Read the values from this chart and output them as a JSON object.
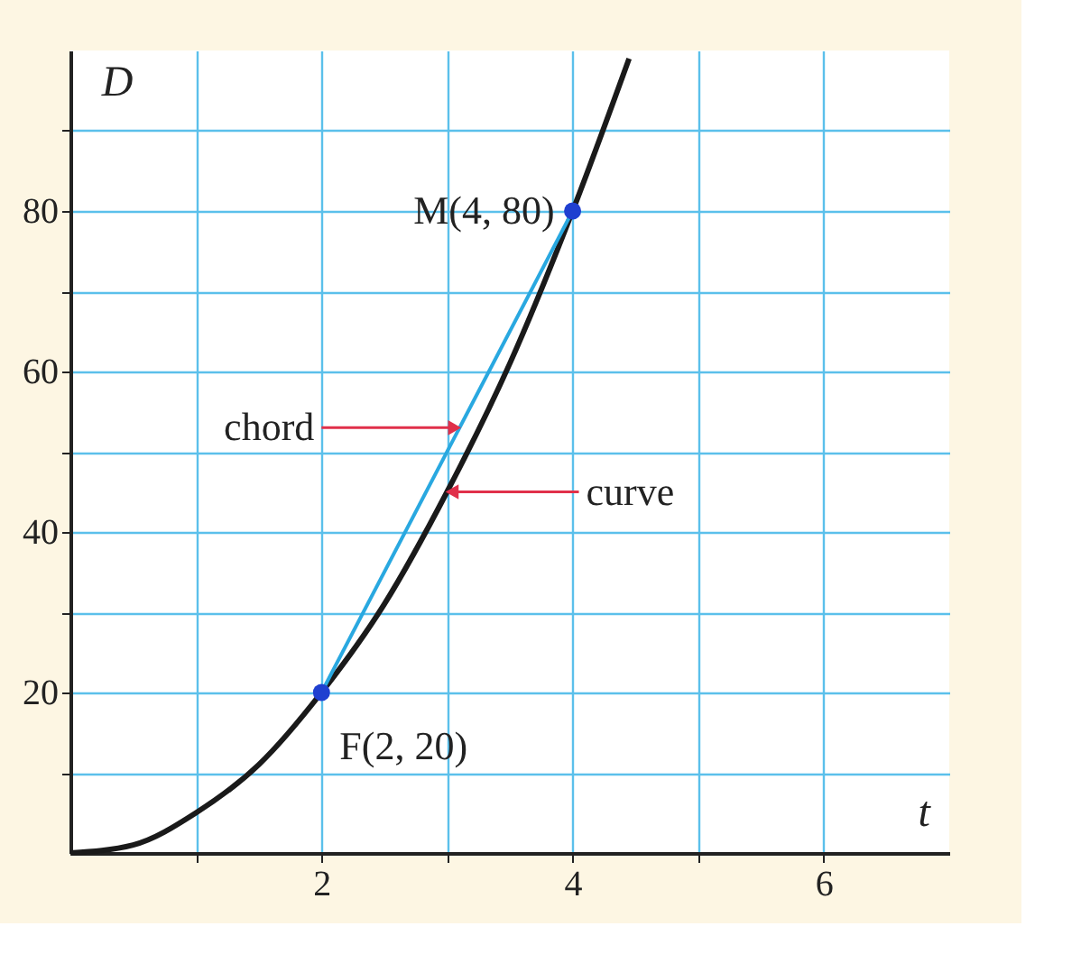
{
  "chart_data": {
    "type": "line",
    "xlabel": "t",
    "ylabel": "D",
    "xlim": [
      0,
      7
    ],
    "ylim": [
      0,
      100
    ],
    "xticks": [
      {
        "value": 1,
        "label": null
      },
      2,
      {
        "value": 3,
        "label": null
      },
      4,
      {
        "value": 5,
        "label": null
      },
      6
    ],
    "yticks": [
      {
        "value": 10,
        "label": null
      },
      20,
      {
        "value": 30,
        "label": null
      },
      40,
      {
        "value": 50,
        "label": null
      },
      60,
      {
        "value": 70,
        "label": null
      },
      80,
      {
        "value": 90,
        "label": null
      }
    ],
    "grid": true,
    "series": [
      {
        "color": "#1a1a1a",
        "x": [
          0,
          0.5,
          1,
          1.5,
          2,
          2.5,
          3,
          3.5,
          4,
          4.45
        ],
        "values": [
          0,
          1,
          5,
          11,
          20,
          31,
          45,
          61,
          80,
          99
        ]
      },
      {
        "color": "#29a8e0",
        "x": [
          2,
          4
        ],
        "values": [
          20,
          80
        ]
      },
      {
        "type": "scatter",
        "marker": "circle",
        "color": "#1f3fd0",
        "x": [
          2,
          4
        ],
        "values": [
          20,
          80
        ]
      }
    ],
    "annotations": [
      {
        "text": "M(4, 80)",
        "x": 4,
        "y": 80
      },
      {
        "text": "F(2, 20)",
        "x": 2,
        "y": 20
      },
      {
        "text": "chord",
        "x": 3.1,
        "y": 53
      },
      {
        "text": "curve",
        "x": 3,
        "y": 45
      }
    ]
  }
}
